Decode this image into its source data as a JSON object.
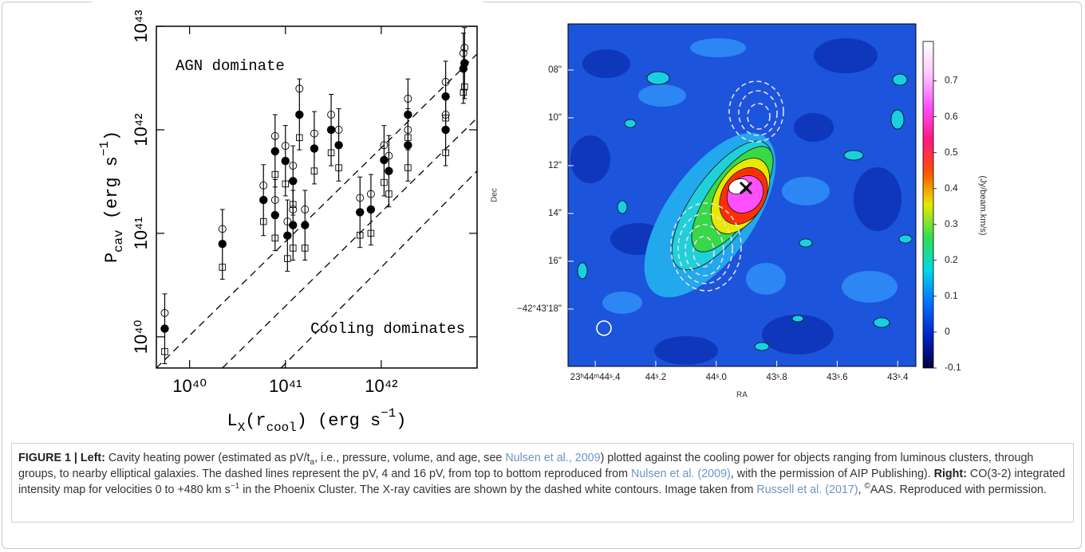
{
  "chart_data": [
    {
      "type": "scatter",
      "log_x": true,
      "log_y": true,
      "xlim": [
        4.5e+39,
        1e+43
      ],
      "ylim": [
        5e+39,
        1e+43
      ],
      "xticks": [
        {
          "value": 1e+40,
          "label": "10⁴⁰"
        },
        {
          "value": 1e+41,
          "label": "10⁴¹"
        },
        {
          "value": 1e+42,
          "label": "10⁴²"
        }
      ],
      "yticks": [
        {
          "value": 1e+40,
          "label": "10⁴⁰"
        },
        {
          "value": 1e+41,
          "label": "10⁴¹"
        },
        {
          "value": 1e+42,
          "label": "10⁴²"
        },
        {
          "value": 1e+43,
          "label": "10⁴³"
        }
      ],
      "xlabel": [
        {
          "text": "L",
          "style": "plain"
        },
        {
          "text": "X",
          "style": "sub"
        },
        {
          "text": "(r",
          "style": "plain"
        },
        {
          "text": "cool",
          "style": "sub"
        },
        {
          "text": ") (erg s",
          "style": "plain"
        },
        {
          "text": "−1",
          "style": "sup"
        },
        {
          "text": ")",
          "style": "plain"
        }
      ],
      "ylabel": [
        {
          "text": "P",
          "style": "plain"
        },
        {
          "text": "cav",
          "style": "sub"
        },
        {
          "text": " (erg s",
          "style": "plain"
        },
        {
          "text": "−1",
          "style": "sup"
        },
        {
          "text": ")",
          "style": "plain"
        }
      ],
      "annotations": [
        "AGN dominate",
        "Cooling dominates"
      ],
      "x": [
        5.5e+39,
        2.2e+40,
        5.9e+40,
        7.8e+40,
        7.8e+40,
        1e+41,
        1.05e+41,
        1.2e+41,
        1.2e+41,
        1.4e+41,
        1.6e+41,
        2e+41,
        3e+41,
        3.6e+41,
        6e+41,
        7.8e+41,
        1.07e+42,
        1.2e+42,
        1.9e+42,
        1.9e+42,
        4.7e+42,
        4.7e+42,
        7.2e+42,
        7.4e+42
      ],
      "series": [
        {
          "marker": "filled-circle",
          "color": "#000000",
          "values": [
            1.2e+40,
            7.9e+40,
            2.1e+41,
            1.5e+41,
            6.2e+41,
            5e+41,
            9.5e+40,
            3.2e+41,
            1.2e+41,
            1.4e+42,
            1.2e+41,
            6.6e+41,
            1e+42,
            7.1e+41,
            1.6e+41,
            1.7e+41,
            5.1e+41,
            4e+41,
            1.4e+42,
            7.1e+41,
            2.1e+42,
            1e+42,
            3.9e+42,
            4.4e+42
          ],
          "y_low": [
            5.5e+39,
            3.6e+40,
            9.5e+40,
            6.8e+40,
            2.8e+41,
            2.3e+41,
            4.3e+40,
            1.5e+41,
            5.5e+40,
            6.4e+41,
            5.5e+40,
            3e+41,
            4.5e+41,
            3.2e+41,
            7.3e+40,
            7.7e+40,
            2.3e+41,
            1.8e+41,
            6.4e+41,
            3.2e+41,
            9.5e+41,
            4.5e+41,
            1.8e+42,
            2e+42
          ],
          "y_high": [
            2.6e+40,
            1.7e+41,
            4.6e+41,
            3.3e+41,
            1.4e+42,
            1.1e+42,
            2.1e+41,
            7e+41,
            2.6e+41,
            3.1e+42,
            2.6e+41,
            1.5e+42,
            2.2e+42,
            1.6e+42,
            3.5e+41,
            3.7e+41,
            1.1e+42,
            8.8e+41,
            3.1e+42,
            1.6e+42,
            4.6e+42,
            2.2e+42,
            8.6e+42,
            9.7e+42
          ]
        },
        {
          "marker": "open-circle",
          "color": "#000000",
          "values": [
            1.7e+40,
            1.1e+41,
            2.9e+41,
            2.1e+41,
            8.7e+41,
            7e+41,
            1.3e+41,
            4.5e+41,
            1.7e+41,
            2.5e+42,
            1.7e+41,
            9.2e+41,
            1.4e+42,
            1e+42,
            2.2e+41,
            2.4e+41,
            7.1e+41,
            5.6e+41,
            2e+42,
            1e+42,
            2.9e+42,
            1.4e+42,
            5.5e+42,
            6.2e+42
          ]
        },
        {
          "marker": "open-square",
          "color": "#000000",
          "values": [
            7.2e+39,
            4.7e+40,
            1.3e+41,
            9e+40,
            3.7e+41,
            3e+41,
            5.7e+40,
            1.9e+41,
            7.2e+40,
            8.4e+41,
            7.2e+40,
            4e+41,
            6e+41,
            4.3e+41,
            9.6e+40,
            1e+41,
            3.1e+41,
            2.4e+41,
            8.4e+41,
            4.3e+41,
            1.3e+42,
            6e+41,
            2.3e+42,
            2.6e+42
          ]
        }
      ],
      "reference_lines": [
        {
          "x": [
            4.5e+39,
            1e+43
          ],
          "y": [
            5e+39,
            5.4e+42
          ]
        },
        {
          "x": [
            2.2e+40,
            1e+43
          ],
          "y": [
            5e+39,
            1.3e+42
          ]
        },
        {
          "x": [
            9e+40,
            1e+43
          ],
          "y": [
            5e+39,
            4e+41
          ]
        }
      ]
    },
    {
      "type": "intensity-map",
      "xlabel": "RA",
      "ylabel": "Dec",
      "xlim": [
        44.49,
        43.34
      ],
      "ylim": [
        20.4,
        6.07
      ],
      "xticks": [
        {
          "value": 44.4,
          "label": "23ʰ44ᵐ44ˢ.4"
        },
        {
          "value": 44.2,
          "label": "44ˢ.2"
        },
        {
          "value": 44.0,
          "label": "44ˢ.0"
        },
        {
          "value": 43.8,
          "label": "43ˢ.8"
        },
        {
          "value": 43.6,
          "label": "43ˢ.6"
        },
        {
          "value": 43.4,
          "label": "43ˢ.4"
        }
      ],
      "yticks": [
        {
          "value": 8,
          "label": "08\""
        },
        {
          "value": 10,
          "label": "10\""
        },
        {
          "value": 12,
          "label": "12\""
        },
        {
          "value": 14,
          "label": "14\""
        },
        {
          "value": 16,
          "label": "16\""
        },
        {
          "value": 18,
          "label": "−42°43'18\""
        }
      ],
      "colorbar": {
        "label": "(Jy/beam.km/s)",
        "clim": [
          -0.1,
          0.81
        ],
        "ticks": [
          -0.1,
          0,
          0.1,
          0.2,
          0.3,
          0.4,
          0.5,
          0.6,
          0.7
        ],
        "colors": [
          "#000040",
          "#0024c8",
          "#0070ff",
          "#00d8e8",
          "#30e050",
          "#e8e800",
          "#ff5000",
          "#ff1880",
          "#ff50ff",
          "#ffc8ff",
          "#ffffff"
        ]
      }
    }
  ],
  "caption": [
    {
      "text": "FIGURE 1 | Left:",
      "style": "bold"
    },
    {
      "text": " Cavity heating power (estimated as pV/t",
      "style": "plain"
    },
    {
      "text": "a",
      "style": "sub"
    },
    {
      "text": ", i.e., pressure, volume, and age, see ",
      "style": "plain"
    },
    {
      "text": "Nulsen et al., 2009",
      "style": "link"
    },
    {
      "text": ") plotted against the cooling power for objects ranging from luminous clusters, through groups, to nearby elliptical galaxies. The dashed lines represent the pV, 4 and 16 pV, from top to bottom reproduced from ",
      "style": "plain"
    },
    {
      "text": "Nulsen et al. (2009)",
      "style": "link"
    },
    {
      "text": ", with the permission of AIP Publishing). ",
      "style": "plain"
    },
    {
      "text": "Right:",
      "style": "bold"
    },
    {
      "text": " CO(3-2) integrated intensity map for velocities 0 to +480 km s",
      "style": "plain"
    },
    {
      "text": "−1",
      "style": "sup"
    },
    {
      "text": " in the Phoenix Cluster. The X-ray cavities are shown by the dashed white contours. Image taken from ",
      "style": "plain"
    },
    {
      "text": "Russell et al. (2017)",
      "style": "link"
    },
    {
      "text": ", ",
      "style": "plain"
    },
    {
      "text": "©",
      "style": "sup"
    },
    {
      "text": "AAS. Reproduced with permission.",
      "style": "plain"
    }
  ]
}
